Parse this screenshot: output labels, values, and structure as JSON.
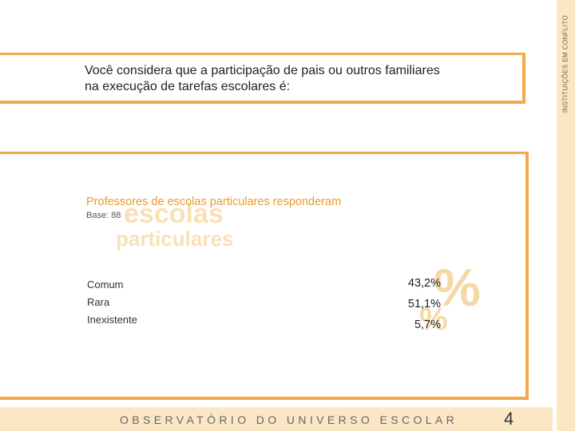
{
  "sidebar": {
    "label": "INSTITUIÇÕES EM CONFLITO"
  },
  "question": {
    "line1": "Você considera que a participação de pais ou outros familiares",
    "line2": "na execução de tarefas escolares é:"
  },
  "section": {
    "subtitle": "Professores de escolas particulares responderam",
    "base": "Base: 88",
    "watermark_word1": "escolas",
    "watermark_word2": "particulares",
    "watermark_symbol": "%"
  },
  "results": [
    {
      "label": "Comum",
      "value": "43,2%"
    },
    {
      "label": "Rara",
      "value": "51,1%"
    },
    {
      "label": "Inexistente",
      "value": "5,7%"
    }
  ],
  "footer": {
    "title": "OBSERVATÓRIO DO UNIVERSO ESCOLAR",
    "page_number": "4"
  },
  "colors": {
    "accent": "#f3a94a",
    "subtitle": "#e89a2b",
    "panel": "#fbe7c6",
    "watermark": "#f8e0b8"
  }
}
